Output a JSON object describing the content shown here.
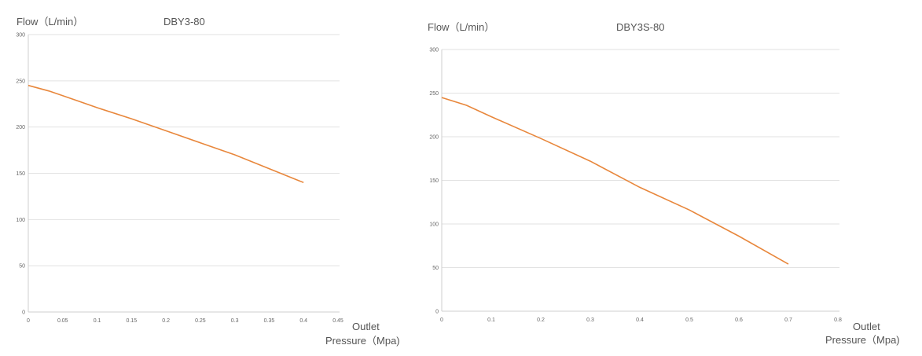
{
  "chart_data": [
    {
      "type": "line",
      "title": "DBY3-80",
      "ylabel": "Flow（L/min）",
      "xlabel_line1": "Outlet",
      "xlabel_line2": "Pressure（Mpa)",
      "xlim": [
        0,
        0.45
      ],
      "ylim": [
        0,
        300
      ],
      "x_ticks": [
        "0",
        "0.05",
        "0.1",
        "0.15",
        "0.2",
        "0.25",
        "0.3",
        "0.35",
        "0.4",
        "0.45"
      ],
      "y_ticks": [
        "0",
        "50",
        "100",
        "150",
        "200",
        "250",
        "300"
      ],
      "x": [
        0,
        0.03,
        0.05,
        0.1,
        0.15,
        0.2,
        0.25,
        0.3,
        0.35,
        0.4
      ],
      "y": [
        245,
        239,
        234,
        221,
        209,
        196,
        183,
        170,
        155,
        140
      ],
      "color": "#e8873c"
    },
    {
      "type": "line",
      "title": "DBY3S-80",
      "ylabel": "Flow（L/min）",
      "xlabel_line1": "Outlet",
      "xlabel_line2": "Pressure（Mpa)",
      "xlim": [
        0,
        0.8
      ],
      "ylim": [
        0,
        300
      ],
      "x_ticks": [
        "0",
        "0.1",
        "0.2",
        "0.3",
        "0.4",
        "0.5",
        "0.6",
        "0.7",
        "0.8"
      ],
      "y_ticks": [
        "0",
        "50",
        "100",
        "150",
        "200",
        "250",
        "300"
      ],
      "x": [
        0,
        0.05,
        0.1,
        0.2,
        0.3,
        0.4,
        0.5,
        0.6,
        0.7
      ],
      "y": [
        245,
        236,
        223,
        198,
        172,
        142,
        116,
        86,
        54
      ],
      "color": "#e8873c"
    }
  ]
}
